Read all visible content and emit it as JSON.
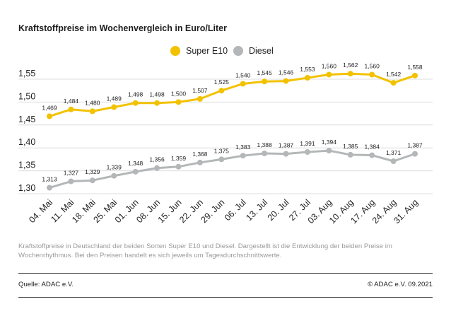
{
  "title": "Kraftstoffpreise im Wochenvergleich in Euro/Liter",
  "legend": [
    {
      "label": "Super E10",
      "color": "#f2c200"
    },
    {
      "label": "Diesel",
      "color": "#b4b7b8"
    }
  ],
  "note": "Kraftstoffpreise in Deutschland der beiden Sorten Super E10 und Diesel. Dargestellt ist die Entwicklung der beiden Preise im Wochenrhythmus. Bei den Preisen handelt es sich jeweils um Tagesdurchschnittswerte.",
  "source": "Quelle: ADAC e.V.",
  "copyright": "© ADAC e.V. 09.2021",
  "chart_data": {
    "type": "line",
    "categories": [
      "04. Mai",
      "11. Mai",
      "18. Mai",
      "25. Mai",
      "01. Jun",
      "08. Jun",
      "15. Jun",
      "22. Jun",
      "29. Jun",
      "06. Jul",
      "13. Jul",
      "20. Jul",
      "27. Jul",
      "03. Aug",
      "10. Aug",
      "17. Aug",
      "24. Aug",
      "31. Aug"
    ],
    "series": [
      {
        "name": "Super E10",
        "color": "#f2c200",
        "values": [
          1.469,
          1.484,
          1.48,
          1.489,
          1.498,
          1.498,
          1.5,
          1.507,
          1.525,
          1.54,
          1.545,
          1.546,
          1.553,
          1.56,
          1.562,
          1.56,
          1.542,
          1.558
        ],
        "labels": [
          "1,469",
          "1,484",
          "1,480",
          "1,489",
          "1,498",
          "1,498",
          "1,500",
          "1,507",
          "1,525",
          "1,540",
          "1,545",
          "1,546",
          "1,553",
          "1,560",
          "1,562",
          "1,560",
          "1,542",
          "1,558"
        ]
      },
      {
        "name": "Diesel",
        "color": "#b4b7b8",
        "values": [
          1.313,
          1.327,
          1.329,
          1.339,
          1.348,
          1.356,
          1.359,
          1.368,
          1.375,
          1.383,
          1.388,
          1.387,
          1.391,
          1.394,
          1.385,
          1.384,
          1.371,
          1.387
        ],
        "labels": [
          "1,313",
          "1,327",
          "1,329",
          "1,339",
          "1,348",
          "1,356",
          "1,359",
          "1,368",
          "1,375",
          "1,383",
          "1,388",
          "1,387",
          "1,391",
          "1,394",
          "1,385",
          "1,384",
          "1,371",
          "1,387"
        ]
      }
    ],
    "yticks": [
      1.3,
      1.35,
      1.4,
      1.45,
      1.5,
      1.55
    ],
    "ytick_labels": [
      "1,30",
      "1,35",
      "1,40",
      "1,45",
      "1,50",
      "1,55"
    ],
    "ylim": [
      1.28,
      1.575
    ],
    "grid": true
  }
}
